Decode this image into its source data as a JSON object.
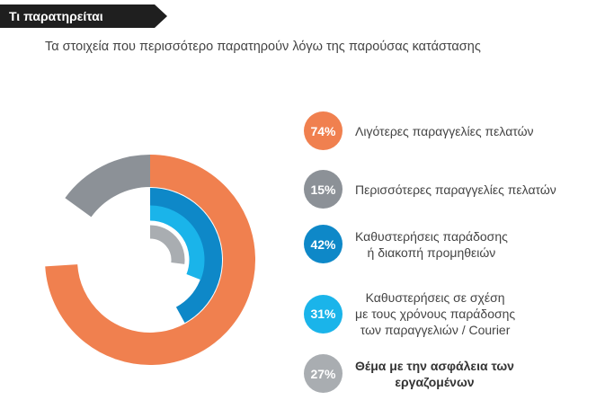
{
  "header": {
    "tag_label": "Τι παρατηρείται",
    "subtitle": "Τα στοιχεία που περισσότερο παρατηρούν λόγω της παρούσας κατάστασης"
  },
  "colors": {
    "tag_bg": "#1f1f1f",
    "orange": "#f0804f",
    "gray": "#8c9197",
    "blue": "#0e88c8",
    "light_blue": "#1ab4ea",
    "light_gray": "#a9adb1",
    "track": "#ffffff"
  },
  "chart_data": {
    "type": "radial-bar",
    "unit": "%",
    "max": 100,
    "series": [
      {
        "name": "Λιγότερες παραγγελίες πελατών",
        "value": 74,
        "label": "74%",
        "color": "#f0804f"
      },
      {
        "name": "Περισσότερες παραγγελίες πελατών",
        "value": 15,
        "label": "15%",
        "color": "#8c9197"
      },
      {
        "name": "Καθυστερήσεις παράδοσης\nή διακοπή προμηθειών",
        "value": 42,
        "label": "42%",
        "color": "#0e88c8"
      },
      {
        "name": "Καθυστερήσεις σε σχέση\nμε τους χρόνους παράδοσης\nτων παραγγελιών / Courier",
        "value": 31,
        "label": "31%",
        "color": "#1ab4ea"
      },
      {
        "name": "Θέμα με την ασφάλεια των\nεργαζομένων",
        "value": 27,
        "label": "27%",
        "color": "#a9adb1",
        "bold": true
      }
    ]
  }
}
